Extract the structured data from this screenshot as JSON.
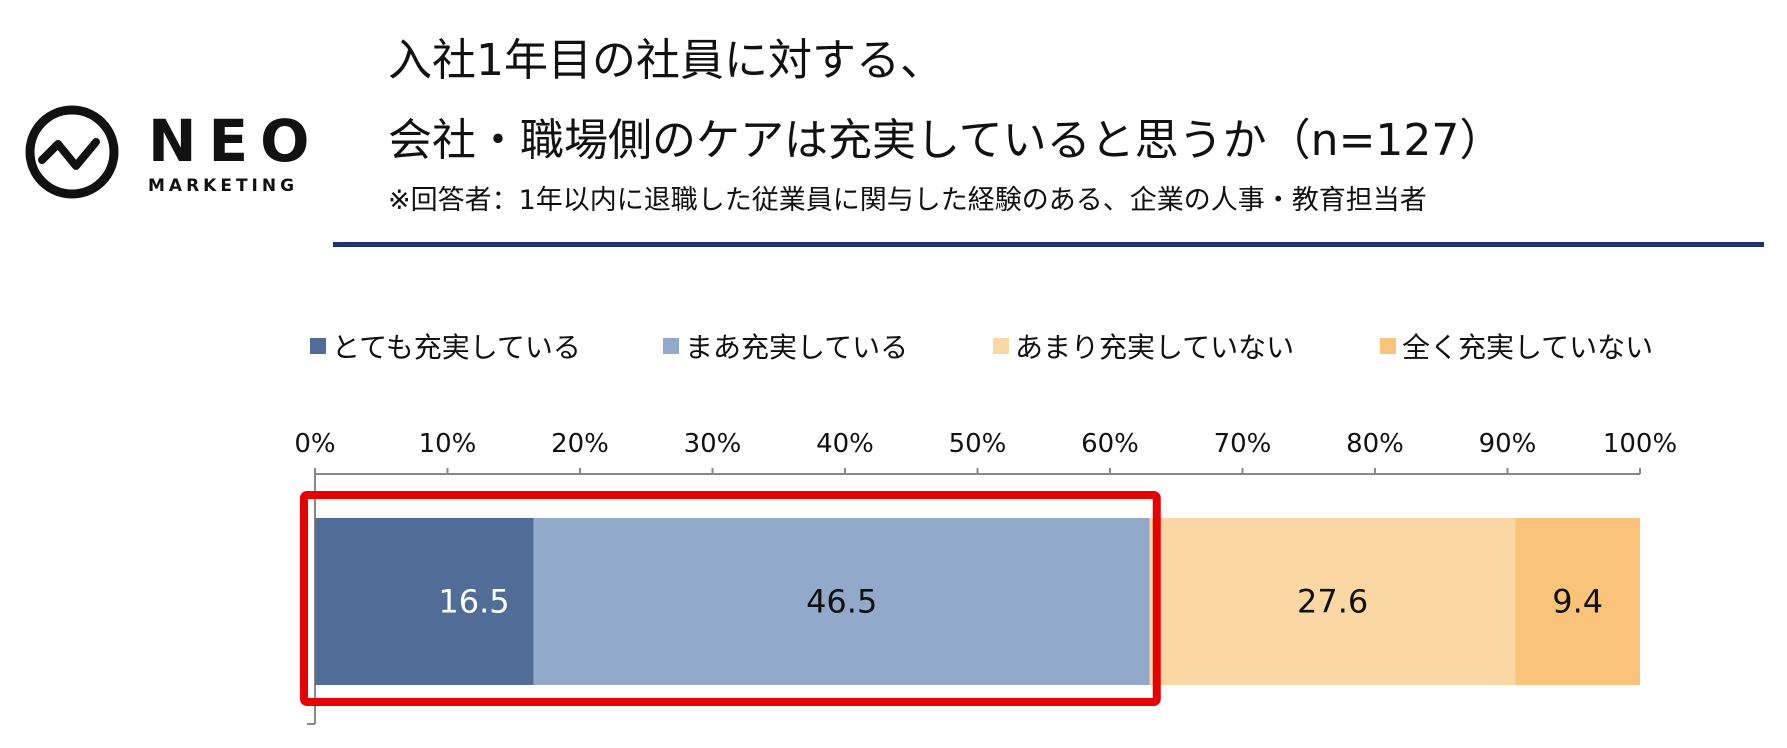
{
  "logo": {
    "word": "NEO",
    "sub": "MARKETING"
  },
  "title_line1": "入社1年目の社員に対する、",
  "title_line2": "会社・職場側のケアは充実していると思うか（n=127）",
  "subtitle": "※回答者：1年以内に退職した従業員に関与した経験のある、企業の人事・教育担当者",
  "colors": {
    "accent_rule": "#1f3270",
    "highlight_box": "#e60000",
    "series": [
      "#4f6d96",
      "#93a9c9",
      "#fbd7a4",
      "#f9c47a"
    ]
  },
  "chart_data": {
    "type": "bar",
    "orientation": "horizontal",
    "stacked": true,
    "title": "入社1年目の社員に対する、会社・職場側のケアは充実していると思うか（n=127）",
    "xlim": [
      0,
      100
    ],
    "x_ticks": [
      "0%",
      "10%",
      "20%",
      "30%",
      "40%",
      "50%",
      "60%",
      "70%",
      "80%",
      "90%",
      "100%"
    ],
    "legend_position": "top",
    "series": [
      {
        "name": "とても充実している",
        "values": [
          16.5
        ],
        "label": "16.5"
      },
      {
        "name": "まあ充実している",
        "values": [
          46.5
        ],
        "label": "46.5"
      },
      {
        "name": "あまり充実していない",
        "values": [
          27.6
        ],
        "label": "27.6"
      },
      {
        "name": "全く充実していない",
        "values": [
          9.4
        ],
        "label": "9.4"
      }
    ],
    "highlighted_series": [
      "とても充実している",
      "まあ充実している"
    ]
  }
}
